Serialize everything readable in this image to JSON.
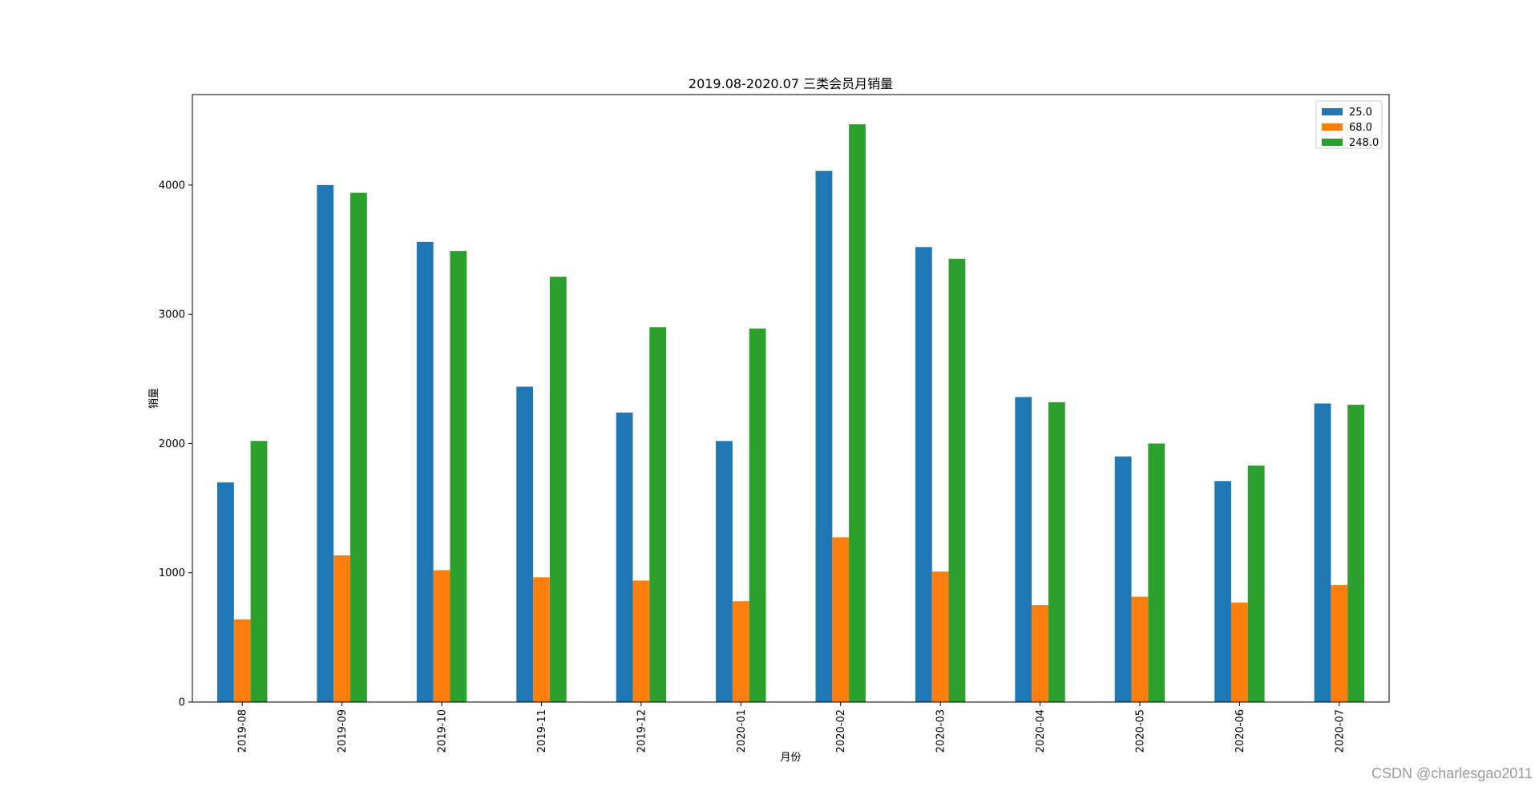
{
  "chart_data": {
    "type": "bar",
    "title": "2019.08-2020.07 三类会员月销量",
    "xlabel": "月份",
    "ylabel": "销量",
    "categories": [
      "2019-08",
      "2019-09",
      "2019-10",
      "2019-11",
      "2019-12",
      "2020-01",
      "2020-02",
      "2020-03",
      "2020-04",
      "2020-05",
      "2020-06",
      "2020-07"
    ],
    "series": [
      {
        "name": "25.0",
        "color": "#1f77b4",
        "values": [
          1700,
          4000,
          3560,
          2440,
          2240,
          2020,
          4110,
          3520,
          2360,
          1900,
          1710,
          2310
        ]
      },
      {
        "name": "68.0",
        "color": "#ff7f0e",
        "values": [
          640,
          1135,
          1020,
          965,
          940,
          780,
          1275,
          1010,
          750,
          815,
          770,
          905
        ]
      },
      {
        "name": "248.0",
        "color": "#2ca02c",
        "values": [
          2020,
          3940,
          3490,
          3290,
          2900,
          2890,
          4470,
          3430,
          2320,
          2000,
          1830,
          2300
        ]
      }
    ],
    "ylim": [
      0,
      4700
    ],
    "yticks": [
      0,
      1000,
      2000,
      3000,
      4000
    ],
    "grid": false,
    "legend": "top-right"
  },
  "watermark": "CSDN @charlesgao2011"
}
